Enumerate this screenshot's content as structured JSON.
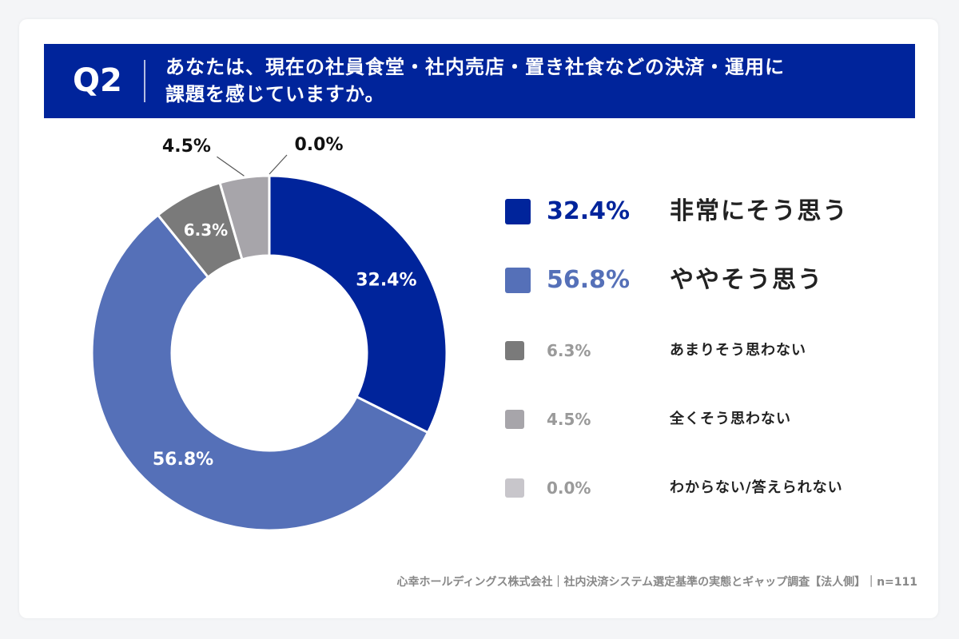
{
  "question": {
    "label": "Q2",
    "title_line1": "あなたは、現在の社員食堂・社内売店・置き社食などの決済・運用に",
    "title_line2": "課題を感じていますか。"
  },
  "chart_data": {
    "type": "pie",
    "variant": "donut",
    "title": "",
    "slices": [
      {
        "name": "非常にそう思う",
        "value": 32.4,
        "label": "32.4%",
        "color": "#00249b"
      },
      {
        "name": "ややそう思う",
        "value": 56.8,
        "label": "56.8%",
        "color": "#5570b8"
      },
      {
        "name": "あまりそう思わない",
        "value": 6.3,
        "label": "6.3%",
        "color": "#7a7a7a"
      },
      {
        "name": "全くそう思わない",
        "value": 4.5,
        "label": "4.5%",
        "color": "#a7a5aa"
      },
      {
        "name": "わからない/答えられない",
        "value": 0.0,
        "label": "0.0%",
        "color": "#c8c6cb"
      }
    ],
    "legend_position": "right"
  },
  "colors": {
    "header_bg": "#00249b",
    "pct_emphasis_1": "#00249b",
    "pct_emphasis_2": "#5570b8",
    "pct_muted": "#9a9a9a"
  },
  "footer": {
    "text": "心幸ホールディングス株式会社｜社内決済システム選定基準の実態とギャップ調査【法人側】｜n=111"
  }
}
